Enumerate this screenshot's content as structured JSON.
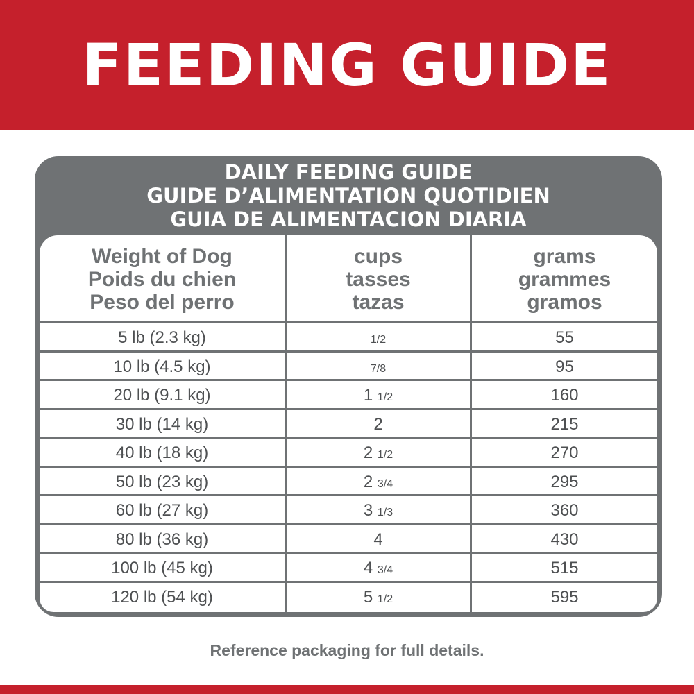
{
  "banner": {
    "title": "FEEDING GUIDE",
    "color": "#c5202c"
  },
  "table": {
    "heading": [
      "DAILY FEEDING GUIDE",
      "GUIDE D’ALIMENTATION QUOTIDIEN",
      "GUIA DE ALIMENTACION DIARIA"
    ],
    "columns": [
      [
        "Weight of Dog",
        "Poids du chien",
        "Peso del perro"
      ],
      [
        "cups",
        "tasses",
        "tazas"
      ],
      [
        "grams",
        "grammes",
        "gramos"
      ]
    ],
    "rows": [
      {
        "weight": "5 lb (2.3 kg)",
        "cups_whole": "",
        "cups_frac": "1/2",
        "grams": "55"
      },
      {
        "weight": "10 lb (4.5 kg)",
        "cups_whole": "",
        "cups_frac": "7/8",
        "grams": "95"
      },
      {
        "weight": "20 lb (9.1 kg)",
        "cups_whole": "1",
        "cups_frac": "1/2",
        "grams": "160"
      },
      {
        "weight": "30 lb (14 kg)",
        "cups_whole": "2",
        "cups_frac": "",
        "grams": "215"
      },
      {
        "weight": "40 lb (18 kg)",
        "cups_whole": "2",
        "cups_frac": "1/2",
        "grams": "270"
      },
      {
        "weight": "50 lb (23 kg)",
        "cups_whole": "2",
        "cups_frac": "3/4",
        "grams": "295"
      },
      {
        "weight": "60 lb (27 kg)",
        "cups_whole": "3",
        "cups_frac": "1/3",
        "grams": "360"
      },
      {
        "weight": "80 lb (36 kg)",
        "cups_whole": "4",
        "cups_frac": "",
        "grams": "430"
      },
      {
        "weight": "100 lb (45 kg)",
        "cups_whole": "4",
        "cups_frac": "3/4",
        "grams": "515"
      },
      {
        "weight": "120 lb (54 kg)",
        "cups_whole": "5",
        "cups_frac": "1/2",
        "grams": "595"
      }
    ],
    "frame_color": "#6f7274"
  },
  "footer": {
    "note": "Reference packaging for full details."
  }
}
